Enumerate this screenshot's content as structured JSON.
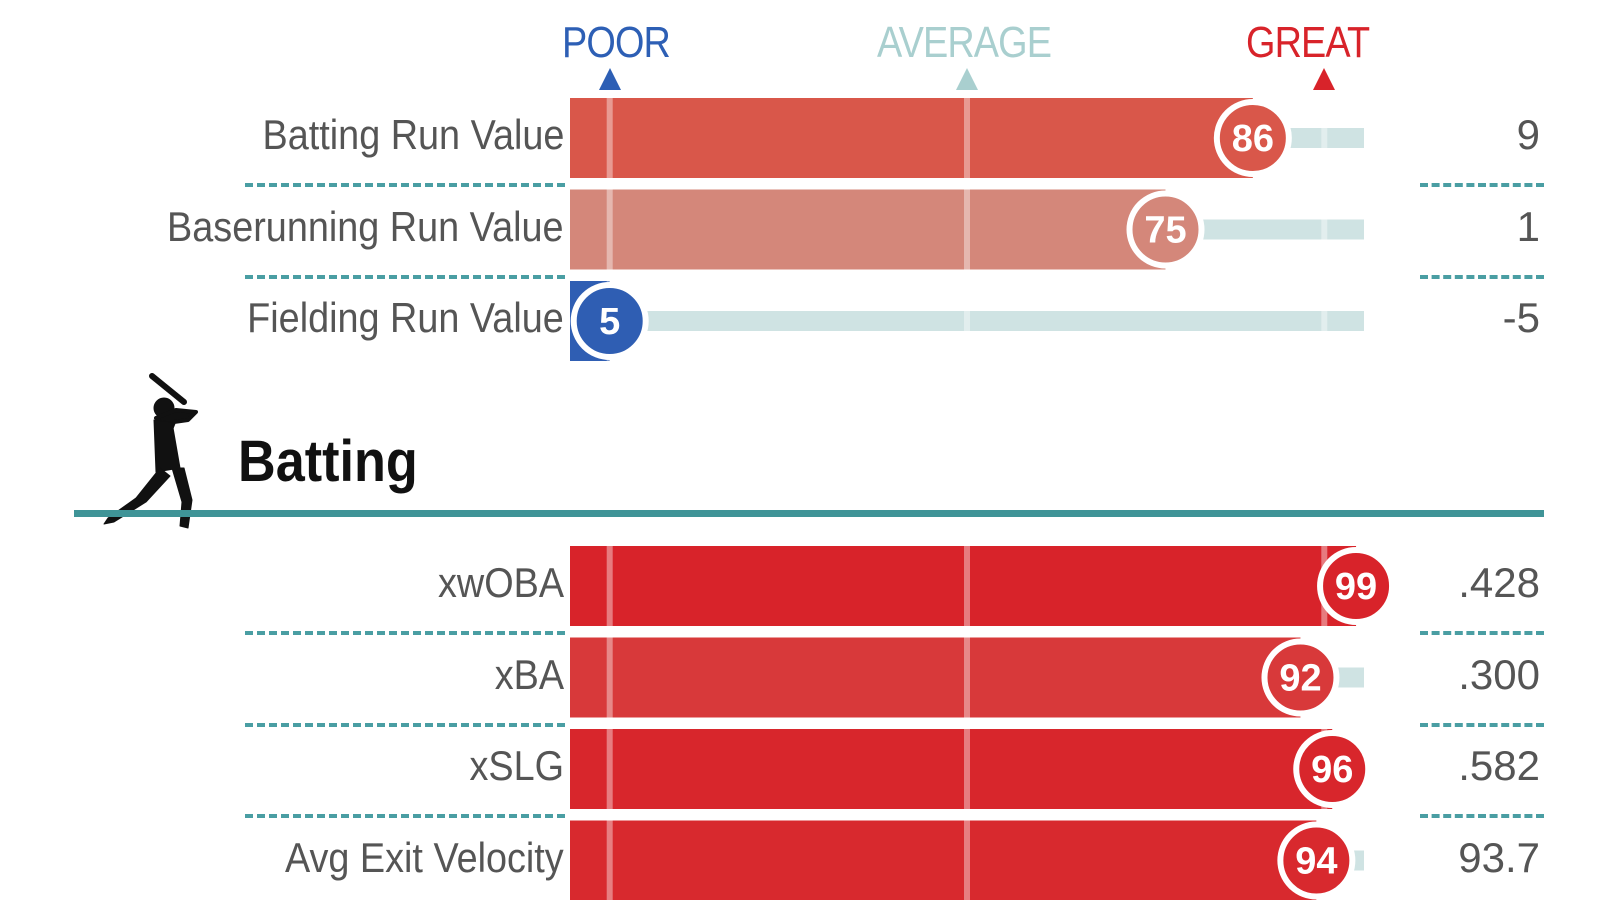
{
  "scale": {
    "poor": {
      "label": "POOR",
      "color": "#2d5fb5",
      "percentile": 5
    },
    "average": {
      "label": "AVERAGE",
      "color": "#a9cfcf",
      "percentile": 50
    },
    "great": {
      "label": "GREAT",
      "color": "#d8232a",
      "percentile": 95
    }
  },
  "section": {
    "title": "Batting",
    "icon": "batter-silhouette-icon"
  },
  "chart_data": {
    "type": "bar",
    "xlim": [
      0,
      100
    ],
    "groups": [
      {
        "title": "",
        "rows": [
          {
            "label": "Batting Run Value",
            "percentile": 86,
            "value": "9",
            "color": "#d9574a"
          },
          {
            "label": "Baserunning Run Value",
            "percentile": 75,
            "value": "1",
            "color": "#d4877a"
          },
          {
            "label": "Fielding Run Value",
            "percentile": 5,
            "value": "-5",
            "color": "#2f5eb3"
          }
        ]
      },
      {
        "title": "Batting",
        "rows": [
          {
            "label": "xwOBA",
            "percentile": 99,
            "value": ".428",
            "color": "#d8232a"
          },
          {
            "label": "xBA",
            "percentile": 92,
            "value": ".300",
            "color": "#d8393a"
          },
          {
            "label": "xSLG",
            "percentile": 96,
            "value": ".582",
            "color": "#d8262c"
          },
          {
            "label": "Avg Exit Velocity",
            "percentile": 94,
            "value": "93.7",
            "color": "#d8292e"
          }
        ]
      }
    ]
  }
}
